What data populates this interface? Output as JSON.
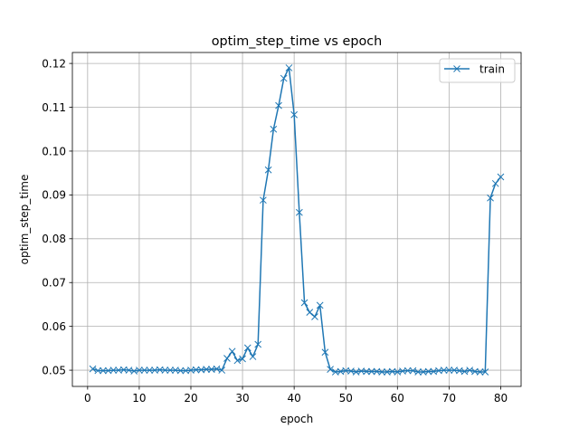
{
  "chart_data": {
    "type": "line",
    "title": "optim_step_time vs epoch",
    "xlabel": "epoch",
    "ylabel": "optim_step_time",
    "xlim": [
      -2.95,
      83.95
    ],
    "ylim": [
      0.0463,
      0.1225
    ],
    "xticks": [
      0,
      10,
      20,
      30,
      40,
      50,
      60,
      70,
      80
    ],
    "yticks": [
      0.05,
      0.06,
      0.07,
      0.08,
      0.09,
      0.1,
      0.11,
      0.12
    ],
    "ytick_labels": [
      "0.05",
      "0.06",
      "0.07",
      "0.08",
      "0.09",
      "0.10",
      "0.11",
      "0.12"
    ],
    "grid": true,
    "legend_position": "top-right",
    "marker": "x",
    "series": [
      {
        "name": "train",
        "color": "#1f77b4",
        "x": [
          1,
          2,
          3,
          4,
          5,
          6,
          7,
          8,
          9,
          10,
          11,
          12,
          13,
          14,
          15,
          16,
          17,
          18,
          19,
          20,
          21,
          22,
          23,
          24,
          25,
          26,
          27,
          28,
          29,
          30,
          31,
          32,
          33,
          34,
          35,
          36,
          37,
          38,
          39,
          40,
          41,
          42,
          43,
          44,
          45,
          46,
          47,
          48,
          49,
          50,
          51,
          52,
          53,
          54,
          55,
          56,
          57,
          58,
          59,
          60,
          61,
          62,
          63,
          64,
          65,
          66,
          67,
          68,
          69,
          70,
          71,
          72,
          73,
          74,
          75,
          76,
          77,
          78,
          79,
          80
        ],
        "values": [
          0.0503,
          0.0499,
          0.0499,
          0.0499,
          0.05,
          0.05,
          0.0501,
          0.05,
          0.0498,
          0.05,
          0.05,
          0.05,
          0.05,
          0.0501,
          0.05,
          0.05,
          0.05,
          0.0499,
          0.0499,
          0.05,
          0.0501,
          0.0501,
          0.0502,
          0.0502,
          0.0503,
          0.05,
          0.0527,
          0.0543,
          0.0522,
          0.0526,
          0.0551,
          0.0531,
          0.0559,
          0.0888,
          0.0957,
          0.105,
          0.1104,
          0.1166,
          0.119,
          0.1083,
          0.086,
          0.0654,
          0.0632,
          0.0622,
          0.0648,
          0.0541,
          0.0502,
          0.0496,
          0.0497,
          0.0499,
          0.0498,
          0.0496,
          0.0498,
          0.0497,
          0.0497,
          0.0497,
          0.0496,
          0.0496,
          0.0497,
          0.0496,
          0.0498,
          0.0499,
          0.0499,
          0.0496,
          0.0496,
          0.0497,
          0.0497,
          0.0499,
          0.05,
          0.05,
          0.05,
          0.0499,
          0.0497,
          0.05,
          0.0497,
          0.0496,
          0.0496,
          0.0893,
          0.0926,
          0.0941
        ]
      }
    ]
  }
}
